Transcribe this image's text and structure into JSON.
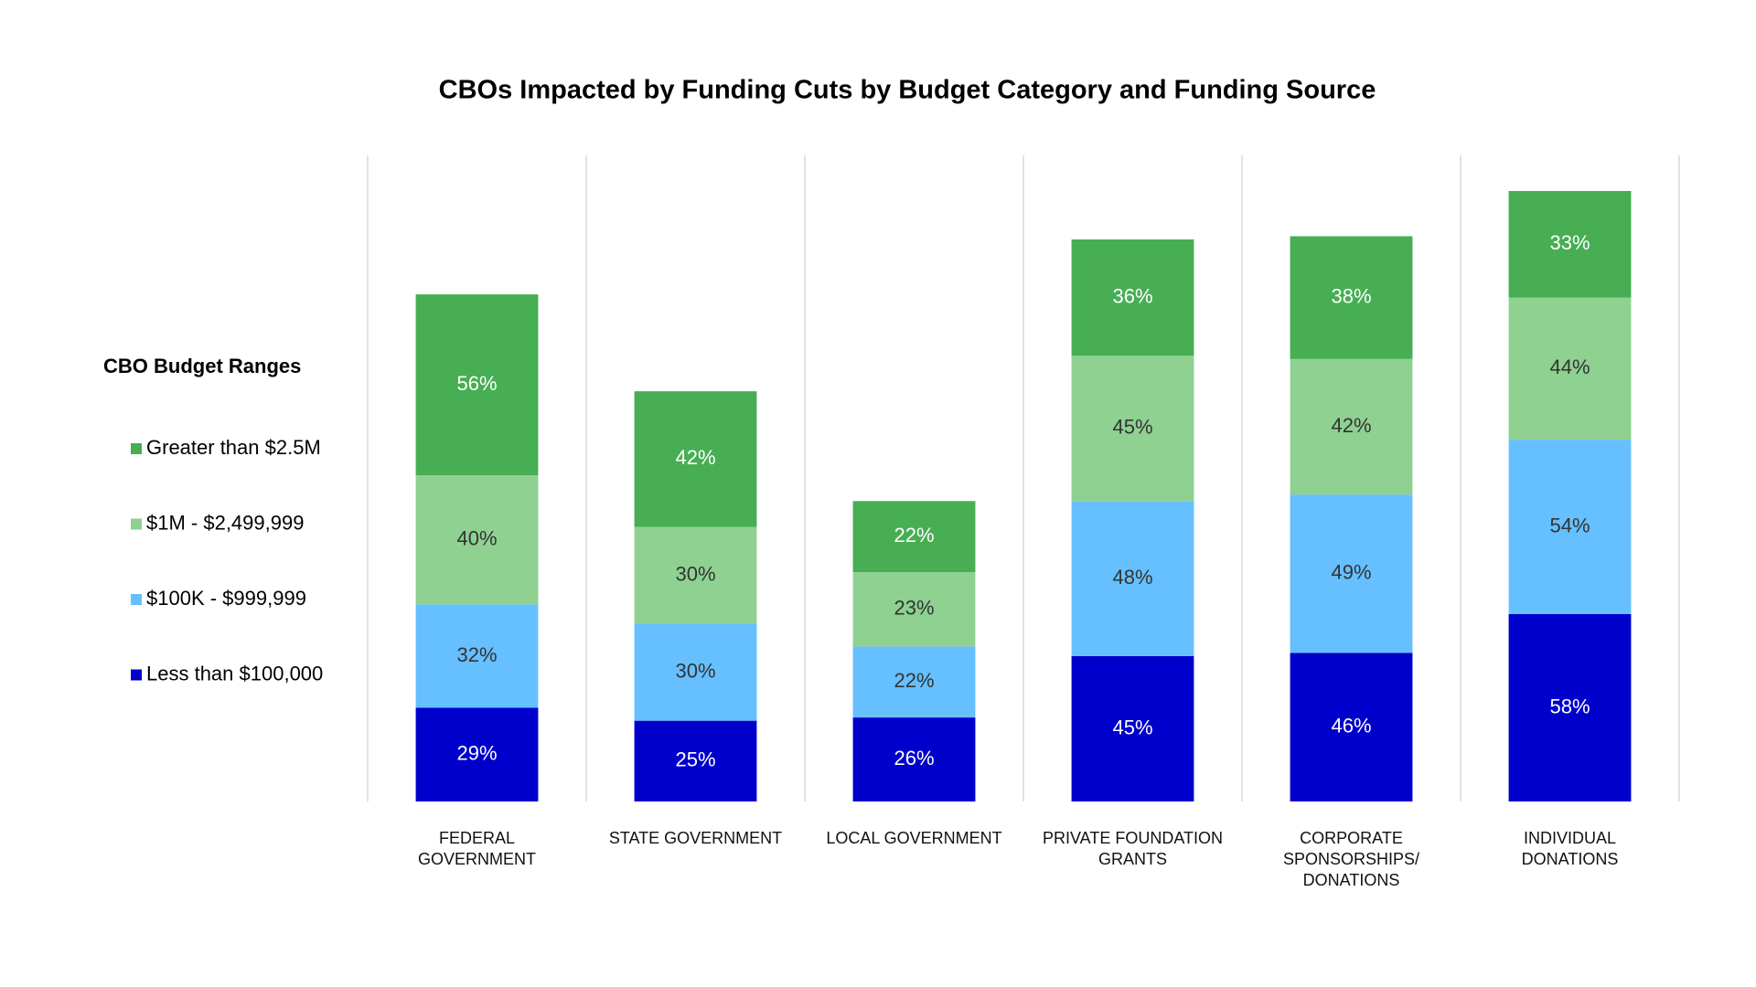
{
  "chart_data": {
    "type": "stacked-bar",
    "title": "CBOs Impacted by Funding Cuts by Budget Category and Funding Source",
    "legend_title": "CBO Budget Ranges",
    "legend": "left",
    "categories": [
      "FEDERAL GOVERNMENT",
      "STATE GOVERNMENT",
      "LOCAL GOVERNMENT",
      "PRIVATE FOUNDATION GRANTS",
      "CORPORATE SPONSORSHIPS/ DONATIONS",
      "INDIVIDUAL DONATIONS"
    ],
    "series": [
      {
        "name": "Less than $100,000",
        "color": "#0000cc",
        "values": [
          29,
          25,
          26,
          45,
          46,
          58
        ],
        "value_labels": [
          "29%",
          "25%",
          "26%",
          "45%",
          "46%",
          "58%"
        ]
      },
      {
        "name": "$100K - $999,999",
        "color": "#66bfff",
        "values": [
          32,
          30,
          22,
          48,
          49,
          54
        ],
        "value_labels": [
          "32%",
          "30%",
          "22%",
          "48%",
          "49%",
          "54%"
        ]
      },
      {
        "name": "$1M - $2,499,999",
        "color": "#8ed191",
        "values": [
          40,
          30,
          23,
          45,
          42,
          44
        ],
        "value_labels": [
          "40%",
          "30%",
          "23%",
          "45%",
          "42%",
          "44%"
        ]
      },
      {
        "name": "Greater than $2.5M",
        "color": "#47ae53",
        "values": [
          56,
          42,
          22,
          36,
          38,
          33
        ],
        "value_labels": [
          "56%",
          "42%",
          "22%",
          "36%",
          "38%",
          "33%"
        ]
      }
    ]
  }
}
